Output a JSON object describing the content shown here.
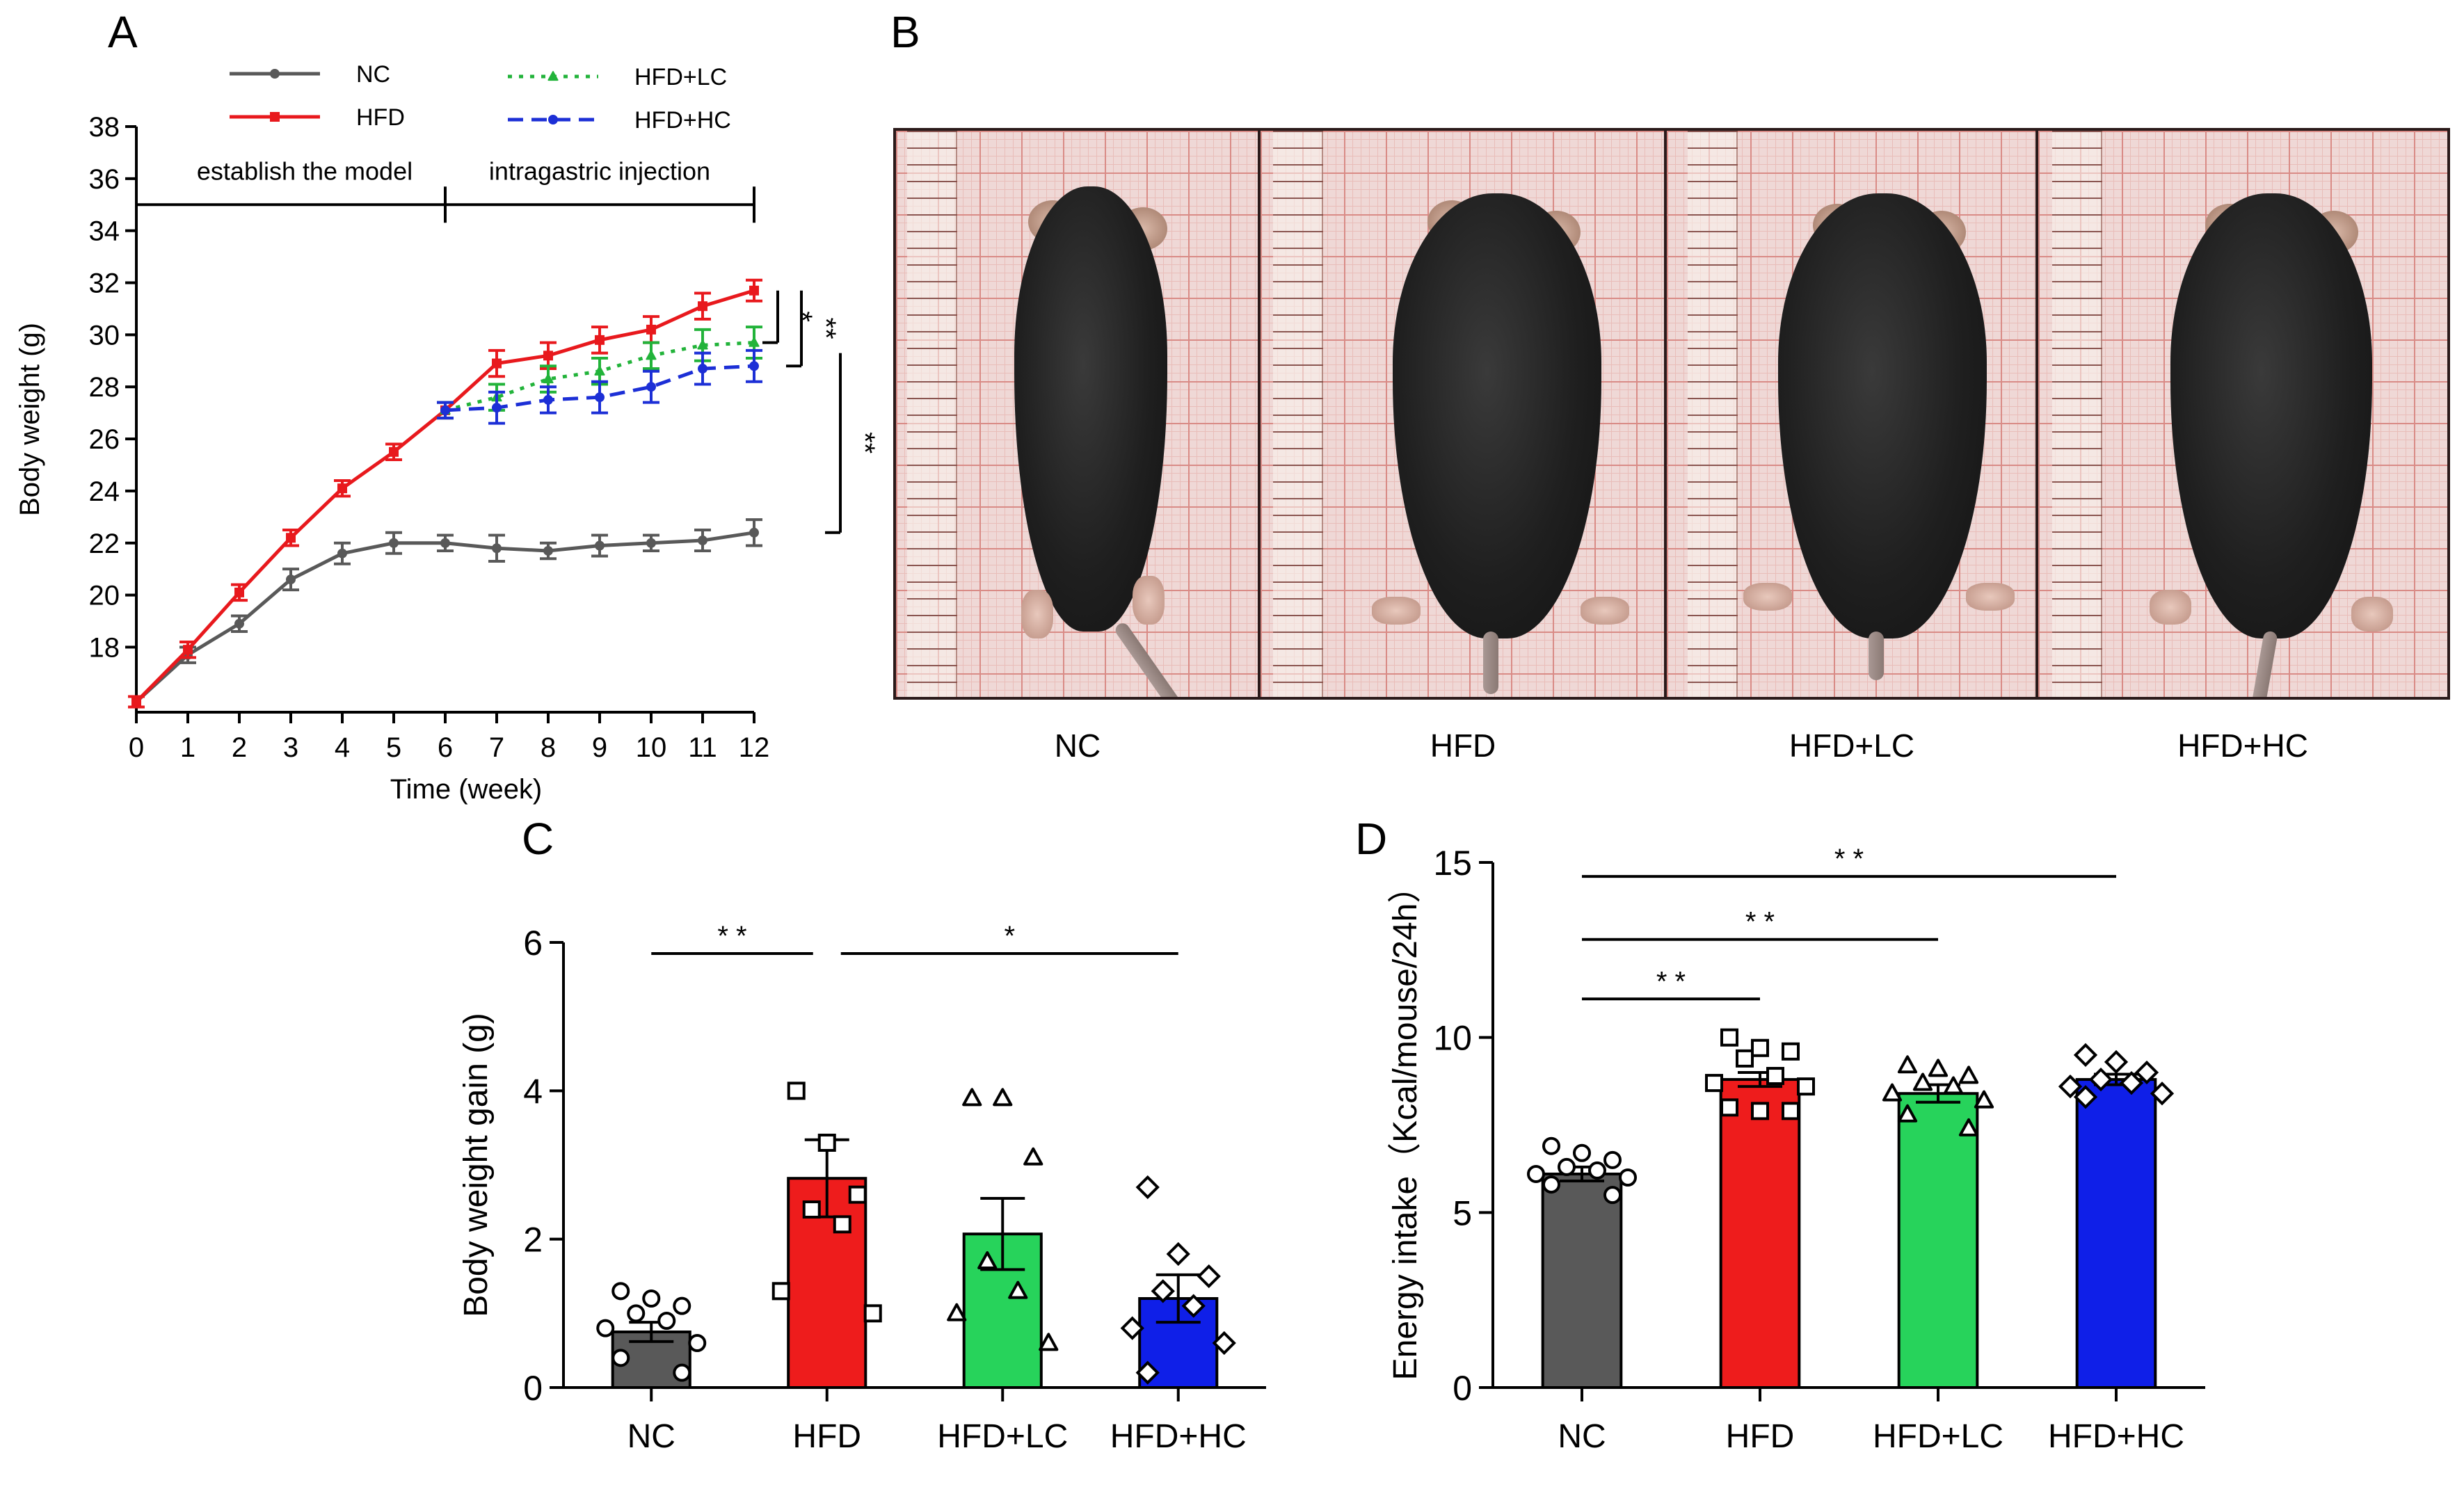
{
  "panels": {
    "a": {
      "letter": "A"
    },
    "b": {
      "letter": "B",
      "labels": [
        "NC",
        "HFD",
        "HFD+LC",
        "HFD+HC"
      ]
    },
    "c": {
      "letter": "C"
    },
    "d": {
      "letter": "D"
    }
  },
  "chart_data": [
    {
      "id": "A",
      "type": "line",
      "title": "",
      "xlabel": "Time (week)",
      "ylabel": "Body weight  (g)",
      "x": [
        0,
        1,
        2,
        3,
        4,
        5,
        6,
        7,
        8,
        9,
        10,
        11,
        12
      ],
      "xlim": [
        0,
        12
      ],
      "ylim": [
        15.5,
        38
      ],
      "yticks": [
        18,
        20,
        22,
        24,
        26,
        28,
        30,
        32,
        34,
        36,
        38
      ],
      "phases": [
        {
          "label": "establish the model",
          "from": 0,
          "to": 6
        },
        {
          "label": "intragastric injection",
          "from": 6,
          "to": 12
        }
      ],
      "series": [
        {
          "name": "NC",
          "color": "#595959",
          "style": "solid",
          "marker": "dot",
          "x": [
            0,
            1,
            2,
            3,
            4,
            5,
            6,
            7,
            8,
            9,
            10,
            11,
            12
          ],
          "values": [
            15.9,
            17.7,
            18.9,
            20.6,
            21.6,
            22.0,
            22.0,
            21.8,
            21.7,
            21.9,
            22.0,
            22.1,
            22.4
          ],
          "errors": [
            0.2,
            0.3,
            0.3,
            0.4,
            0.4,
            0.4,
            0.3,
            0.5,
            0.3,
            0.4,
            0.3,
            0.4,
            0.5
          ]
        },
        {
          "name": "HFD",
          "color": "#e8191d",
          "style": "solid",
          "marker": "square",
          "x": [
            0,
            1,
            2,
            3,
            4,
            5,
            6,
            7,
            8,
            9,
            10,
            11,
            12
          ],
          "values": [
            15.9,
            17.9,
            20.1,
            22.2,
            24.1,
            25.5,
            27.1,
            28.9,
            29.2,
            29.8,
            30.2,
            31.1,
            31.7
          ],
          "errors": [
            0.2,
            0.3,
            0.3,
            0.3,
            0.3,
            0.3,
            0.3,
            0.5,
            0.5,
            0.5,
            0.5,
            0.5,
            0.4
          ]
        },
        {
          "name": "HFD+LC",
          "color": "#22b33a",
          "style": "dotted",
          "marker": "triangle",
          "x": [
            6,
            7,
            8,
            9,
            10,
            11,
            12
          ],
          "values": [
            27.1,
            27.6,
            28.3,
            28.6,
            29.2,
            29.6,
            29.7
          ],
          "errors": [
            0.3,
            0.5,
            0.5,
            0.5,
            0.5,
            0.6,
            0.6
          ]
        },
        {
          "name": "HFD+HC",
          "color": "#1c2fd6",
          "style": "dashed",
          "marker": "circle",
          "x": [
            6,
            7,
            8,
            9,
            10,
            11,
            12
          ],
          "values": [
            27.1,
            27.2,
            27.5,
            27.6,
            28.0,
            28.7,
            28.8
          ],
          "errors": [
            0.3,
            0.6,
            0.5,
            0.6,
            0.6,
            0.6,
            0.6
          ]
        }
      ],
      "significance": [
        {
          "label": "*",
          "from_y": 31.7,
          "to_y": 29.7
        },
        {
          "label": "**",
          "from_y": 31.7,
          "to_y": 28.8
        },
        {
          "label": "**",
          "from_y": 29.3,
          "to_y": 22.4
        }
      ]
    },
    {
      "id": "C",
      "type": "bar",
      "title": "",
      "xlabel": "",
      "ylabel": "Body weight gain  (g)",
      "categories": [
        "NC",
        "HFD",
        "HFD+LC",
        "HFD+HC"
      ],
      "values": [
        0.75,
        2.82,
        2.07,
        1.2
      ],
      "errors": [
        0.13,
        0.52,
        0.48,
        0.32
      ],
      "colors": [
        "#595959",
        "#ee1c1c",
        "#27d35b",
        "#0f1fe8"
      ],
      "markers": [
        "circle",
        "square",
        "triangle",
        "diamond"
      ],
      "points": [
        [
          1.3,
          1.2,
          1.1,
          1.0,
          0.9,
          0.8,
          0.6,
          0.4,
          0.2
        ],
        [
          4.0,
          3.3,
          2.6,
          2.4,
          2.2,
          1.3,
          1.0
        ],
        [
          3.9,
          3.9,
          3.1,
          1.7,
          1.3,
          1.0,
          0.6
        ],
        [
          2.7,
          1.8,
          1.5,
          1.3,
          1.1,
          0.8,
          0.6,
          0.2
        ]
      ],
      "ylim": [
        0,
        6
      ],
      "yticks": [
        0,
        2,
        4,
        6
      ],
      "significance": [
        {
          "label": "* *",
          "from": 0,
          "to": 1,
          "y": 5.85
        },
        {
          "label": "*",
          "from": 1,
          "to": 3,
          "y": 5.85
        }
      ]
    },
    {
      "id": "D",
      "type": "bar",
      "title": "",
      "xlabel": "",
      "ylabel": "Energy intake（Kcal/mouse/24h）",
      "categories": [
        "NC",
        "HFD",
        "HFD+LC",
        "HFD+HC"
      ],
      "values": [
        6.1,
        8.8,
        8.4,
        8.8
      ],
      "errors": [
        0.2,
        0.2,
        0.25,
        0.15
      ],
      "colors": [
        "#595959",
        "#ee1c1c",
        "#27d35b",
        "#0f1fe8"
      ],
      "markers": [
        "circle",
        "square",
        "triangle",
        "diamond"
      ],
      "points": [
        [
          6.9,
          6.7,
          6.5,
          6.3,
          6.2,
          6.1,
          6.0,
          5.8,
          5.5
        ],
        [
          10.0,
          9.7,
          9.6,
          9.4,
          8.9,
          8.7,
          8.6,
          8.0,
          7.9,
          7.9
        ],
        [
          9.2,
          9.1,
          8.9,
          8.7,
          8.6,
          8.4,
          8.2,
          7.8,
          7.4
        ],
        [
          9.5,
          9.3,
          9.0,
          8.8,
          8.7,
          8.6,
          8.4,
          8.3
        ]
      ],
      "ylim": [
        0,
        15
      ],
      "yticks": [
        0,
        5,
        10,
        15
      ],
      "significance": [
        {
          "label": "* *",
          "from": 0,
          "to": 1,
          "y": 11.1
        },
        {
          "label": "* *",
          "from": 0,
          "to": 2,
          "y": 12.8
        },
        {
          "label": "* *",
          "from": 0,
          "to": 3,
          "y": 14.6
        }
      ]
    }
  ]
}
